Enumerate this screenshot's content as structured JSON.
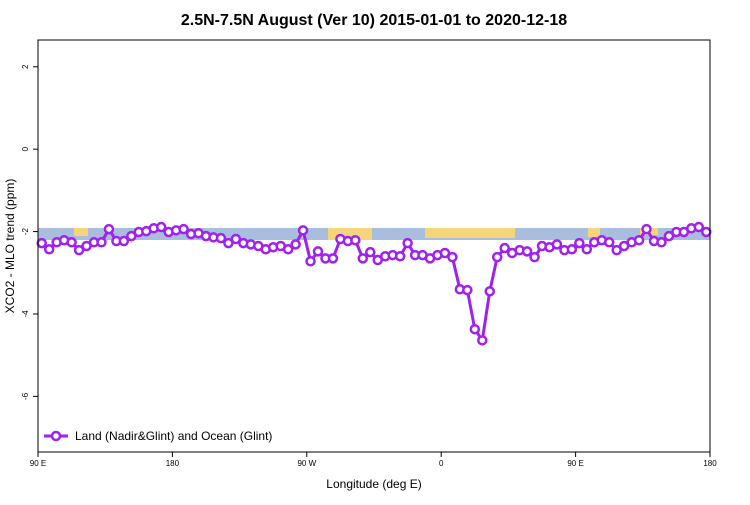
{
  "chart_data": {
    "type": "line",
    "title": "2.5N-7.5N August (Ver 10)   2015-01-01 to 2020-12-18",
    "x_label": "Longitude (deg E)",
    "y_label": "XCO2 - MLO trend (ppm)",
    "x": [
      92.5,
      97.5,
      102.5,
      107.5,
      112.5,
      117.5,
      122.5,
      127.5,
      132.5,
      137.5,
      142.5,
      147.5,
      152.5,
      157.5,
      162.5,
      167.5,
      172.5,
      177.5,
      182.5,
      187.5,
      192.5,
      197.5,
      202.5,
      207.5,
      212.5,
      217.5,
      222.5,
      227.5,
      232.5,
      237.5,
      242.5,
      247.5,
      252.5,
      257.5,
      262.5,
      267.5,
      272.5,
      277.5,
      282.5,
      287.5,
      292.5,
      297.5,
      302.5,
      307.5,
      312.5,
      317.5,
      322.5,
      327.5,
      332.5,
      337.5,
      342.5,
      347.5,
      352.5,
      357.5,
      362.5,
      367.5,
      372.5,
      377.5,
      382.5,
      387.5,
      392.5,
      397.5,
      402.5,
      407.5,
      412.5,
      417.5,
      422.5,
      427.5,
      432.5,
      437.5,
      442.5,
      447.5,
      452.5,
      457.5,
      462.5,
      467.5,
      472.5,
      477.5,
      482.5,
      487.5,
      492.5,
      497.5,
      502.5,
      507.5,
      512.5,
      517.5,
      522.5,
      527.5,
      532.5,
      537.5
    ],
    "series": [
      {
        "name": "Land (Nadir&Glint) and Ocean (Glint)",
        "color": "#a020f0",
        "values": [
          -2.28,
          -2.43,
          -2.26,
          -2.21,
          -2.26,
          -2.45,
          -2.35,
          -2.26,
          -2.26,
          -1.94,
          -2.23,
          -2.23,
          -2.11,
          -2.01,
          -1.99,
          -1.92,
          -1.89,
          -2.01,
          -1.97,
          -1.94,
          -2.06,
          -2.04,
          -2.11,
          -2.14,
          -2.16,
          -2.28,
          -2.18,
          -2.28,
          -2.31,
          -2.35,
          -2.43,
          -2.38,
          -2.35,
          -2.43,
          -2.31,
          -1.97,
          -2.72,
          -2.48,
          -2.65,
          -2.65,
          -2.18,
          -2.23,
          -2.21,
          -2.65,
          -2.5,
          -2.69,
          -2.6,
          -2.57,
          -2.6,
          -2.28,
          -2.57,
          -2.57,
          -2.65,
          -2.57,
          -2.52,
          -2.62,
          -3.4,
          -3.42,
          -4.37,
          -4.64,
          -3.45,
          -2.62,
          -2.4,
          -2.52,
          -2.45,
          -2.48,
          -2.62,
          -2.35,
          -2.38,
          -2.31,
          -2.45,
          -2.43,
          -2.28,
          -2.43,
          -2.26,
          -2.21,
          -2.26,
          -2.45,
          -2.35,
          -2.26,
          -2.21,
          -1.94,
          -2.23,
          -2.26,
          -2.11,
          -2.01,
          -2.01,
          -1.92,
          -1.89,
          -2.01
        ]
      }
    ],
    "xlim": [
      90,
      540
    ],
    "xticks": [
      {
        "value": 90,
        "label": "90 E"
      },
      {
        "value": 180,
        "label": "180"
      },
      {
        "value": 270,
        "label": "90 W"
      },
      {
        "value": 360,
        "label": "0"
      },
      {
        "value": 450,
        "label": "90 E"
      },
      {
        "value": 540,
        "label": "180"
      }
    ],
    "ylim": [
      -7.35,
      2.65
    ],
    "yticks": [
      -6,
      -4,
      -2,
      0,
      2
    ],
    "legend": "bottom-left"
  }
}
